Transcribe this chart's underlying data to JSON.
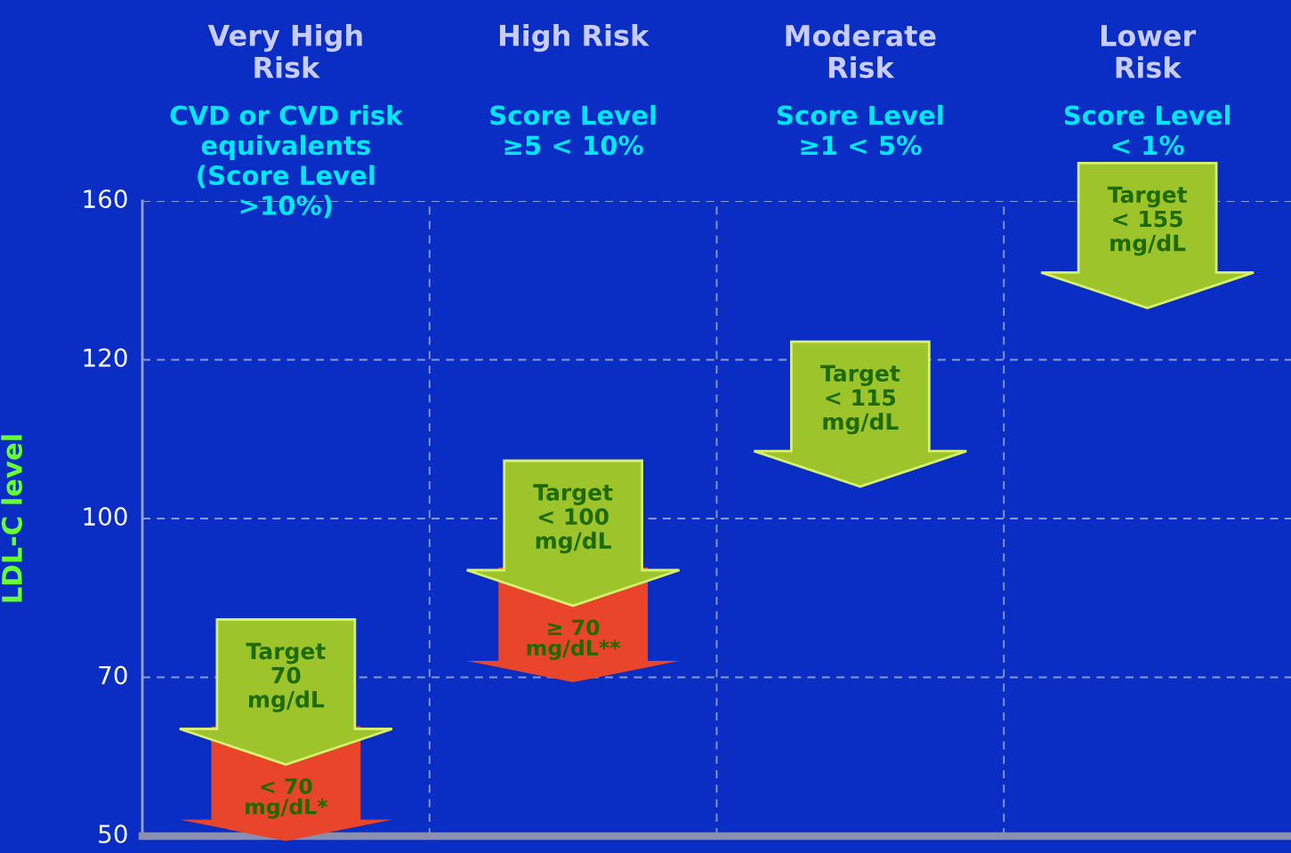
{
  "chart_data": {
    "type": "other",
    "categories": [
      "Very High\nRisk",
      "High Risk\n ",
      "Moderate\nRisk",
      "Lower\nRisk"
    ],
    "annotations": [
      "CVD or CVD risk\nequivalents\n(Score Level\n>10%)",
      "Score Level\n≥5 < 10%",
      "Score Level\n≥1 < 5%",
      "Score Level\n< 1%",
      "50",
      "70",
      "100",
      "120",
      "160"
    ],
    "ylabel": "LDL-C level",
    "series": [
      {
        "color": "#9dc42a",
        "values": [
          70,
          100,
          115,
          155
        ],
        "value_labels": [
          "Target\n70\nmg/dL",
          "Target\n< 100\nmg/dL",
          "Target\n< 115\nmg/dL",
          "Target\n< 155\nmg/dL"
        ]
      },
      {
        "color": "#e8452a",
        "values": [
          70,
          70,
          null,
          null
        ],
        "value_labels": [
          "< 70\nmg/dL*",
          "≥ 70\nmg/dL**",
          null,
          null
        ]
      }
    ]
  }
}
